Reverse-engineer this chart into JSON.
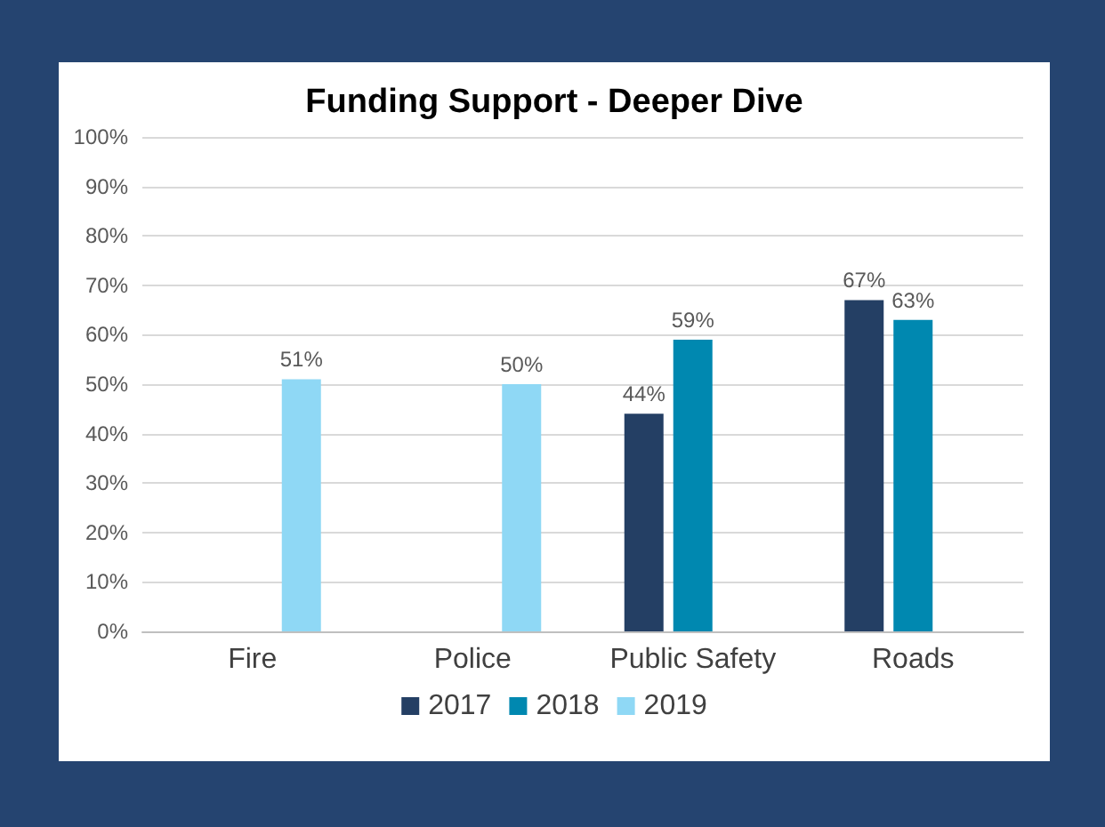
{
  "chart_data": {
    "type": "bar",
    "title": "Funding Support - Deeper Dive",
    "categories": [
      "Fire",
      "Police",
      "Public Safety",
      "Roads"
    ],
    "series": [
      {
        "name": "2017",
        "color": "#243f64",
        "values": [
          null,
          null,
          44,
          67
        ],
        "value_labels": [
          null,
          null,
          "44%",
          "67%"
        ]
      },
      {
        "name": "2018",
        "color": "#0088b0",
        "values": [
          null,
          null,
          59,
          63
        ],
        "value_labels": [
          null,
          null,
          "59%",
          "63%"
        ]
      },
      {
        "name": "2019",
        "color": "#8fd8f5",
        "values": [
          51,
          50,
          null,
          null
        ],
        "value_labels": [
          "51%",
          "50%",
          null,
          null
        ]
      }
    ],
    "ylim": [
      0,
      100
    ],
    "yticks": [
      {
        "value": 0,
        "label": "0%"
      },
      {
        "value": 10,
        "label": "10%"
      },
      {
        "value": 20,
        "label": "20%"
      },
      {
        "value": 30,
        "label": "30%"
      },
      {
        "value": 40,
        "label": "40%"
      },
      {
        "value": 50,
        "label": "50%"
      },
      {
        "value": 60,
        "label": "60%"
      },
      {
        "value": 70,
        "label": "70%"
      },
      {
        "value": 80,
        "label": "80%"
      },
      {
        "value": 90,
        "label": "90%"
      },
      {
        "value": 100,
        "label": "100%"
      }
    ],
    "grid": "y",
    "legend": "bottom"
  }
}
